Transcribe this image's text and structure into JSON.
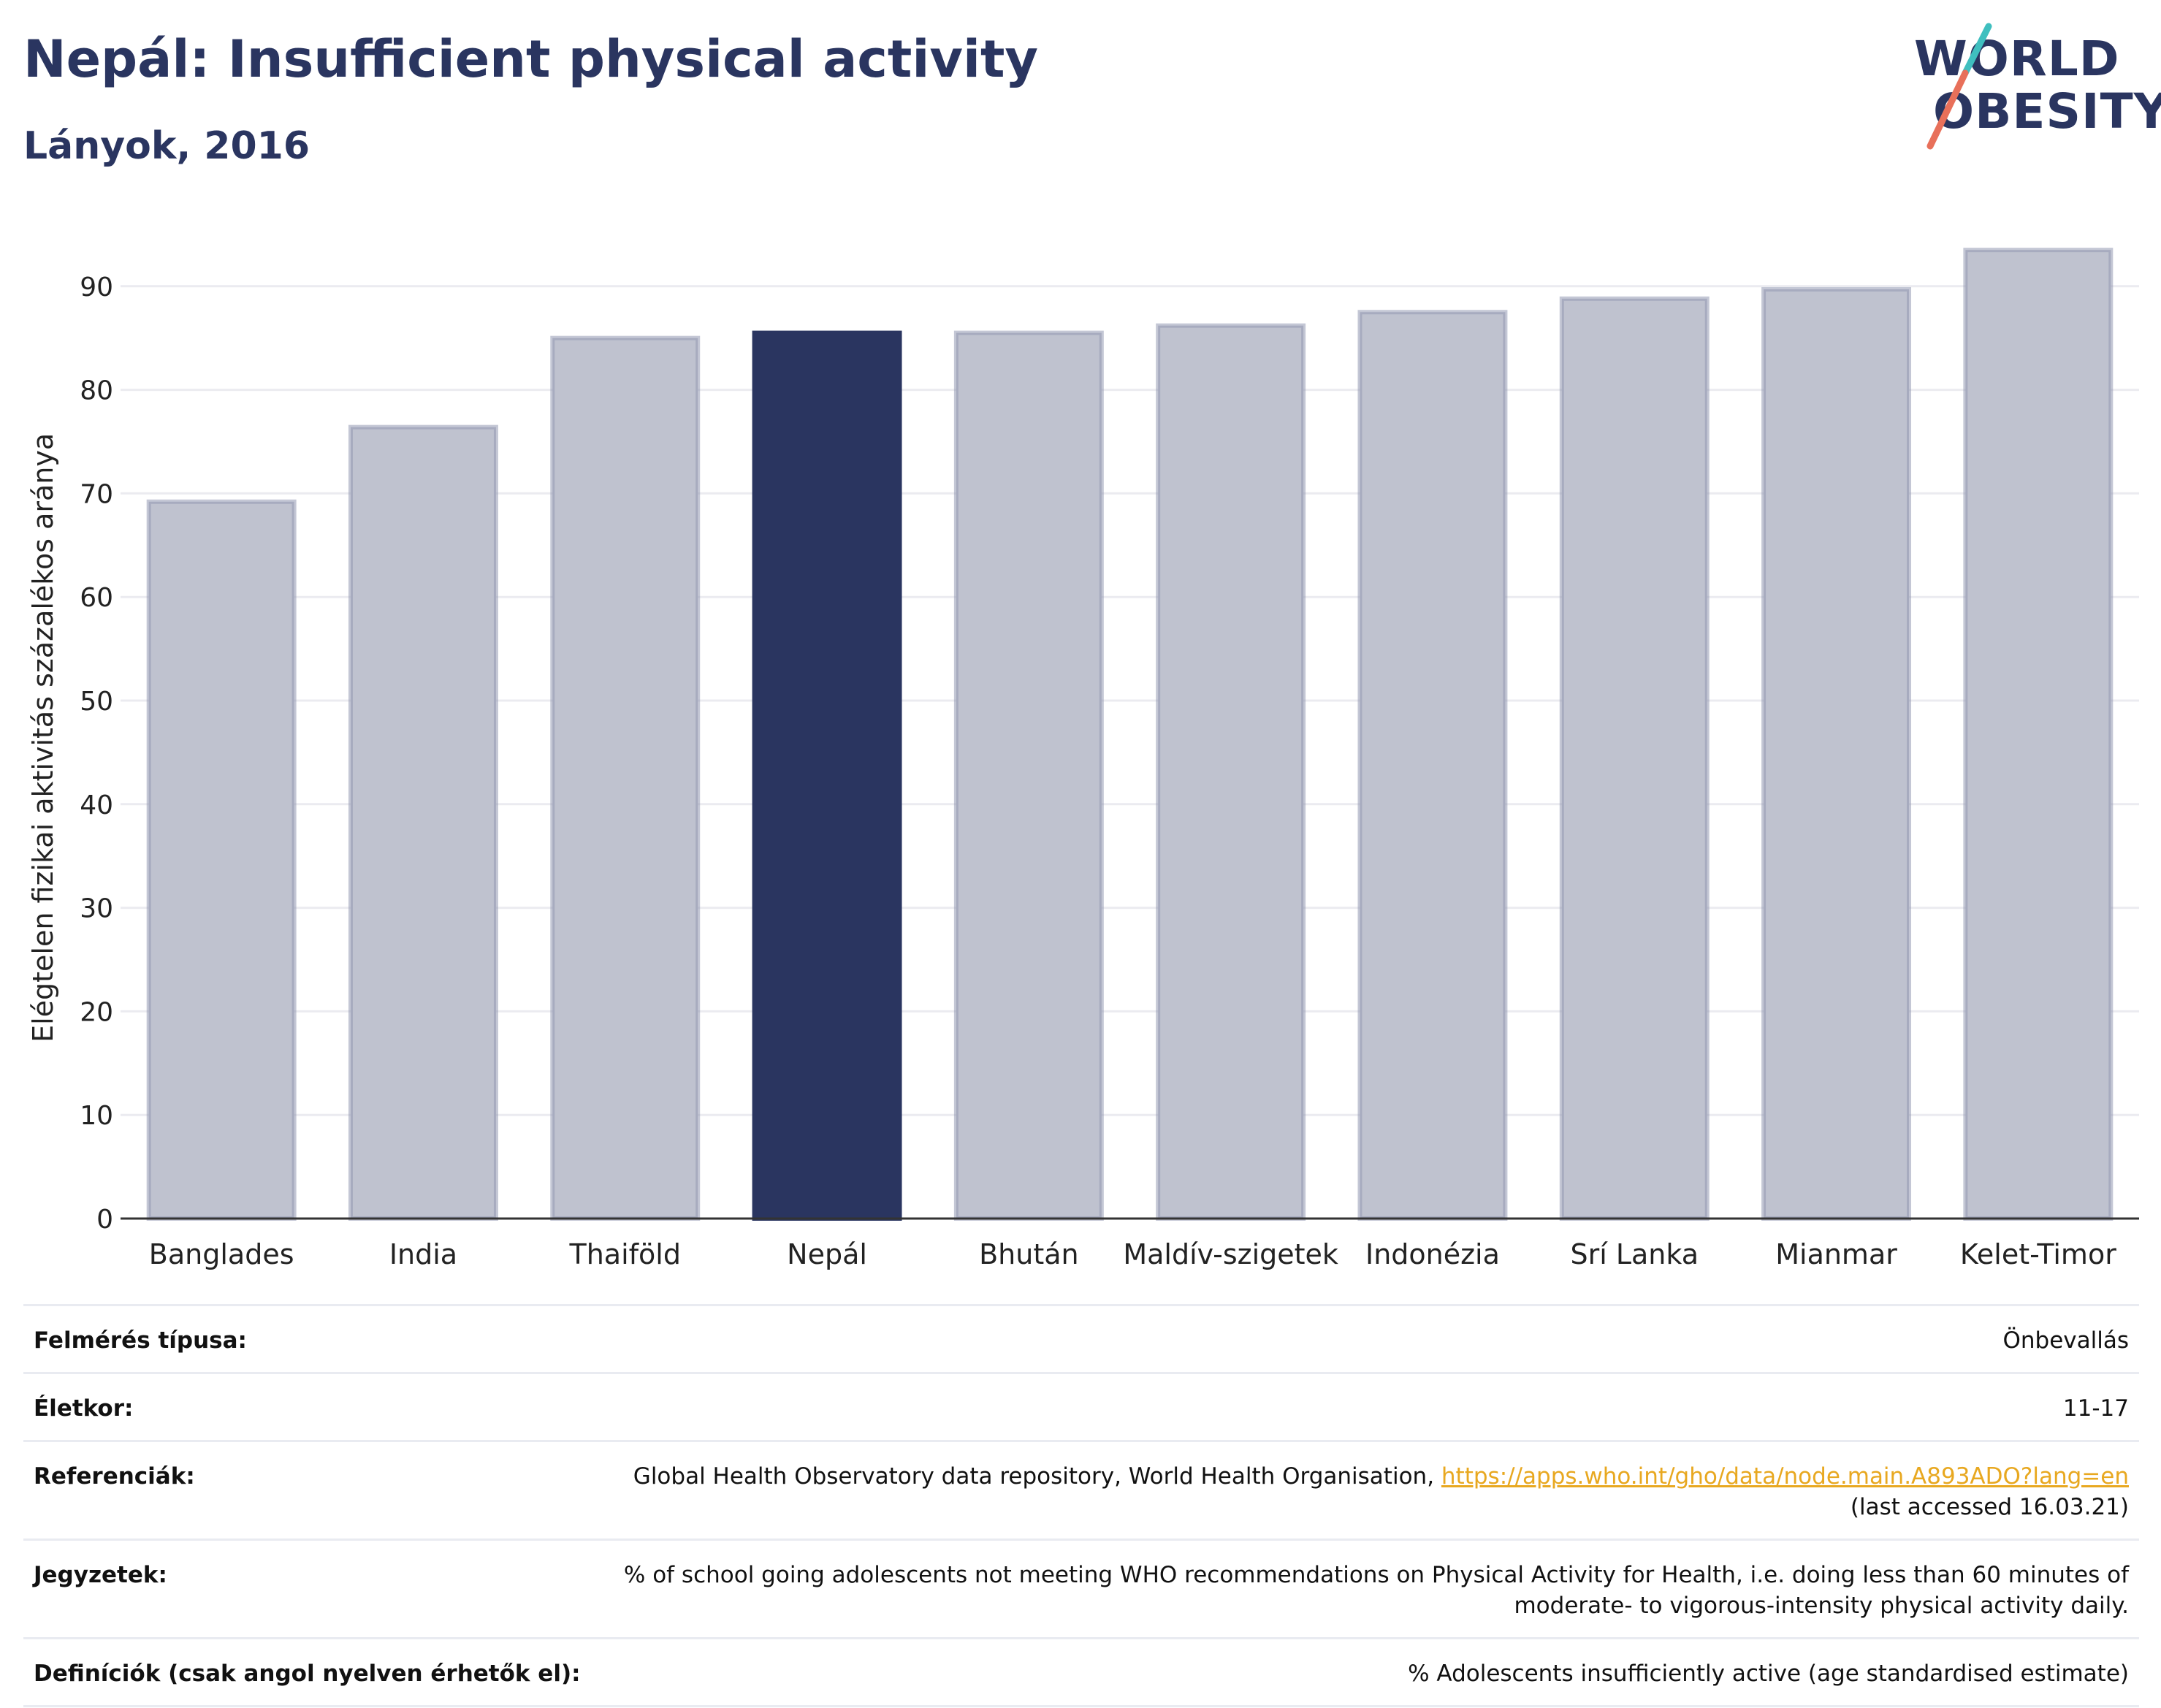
{
  "header": {
    "title": "Nepál: Insufficient physical activity",
    "subtitle": "Lányok, 2016"
  },
  "logo": {
    "line1": "WORLD",
    "line2": "OBESITY",
    "colors": {
      "text": "#2a3560",
      "slash_top": "#3fbfbf",
      "slash_bottom": "#e8705a"
    }
  },
  "chart_data": {
    "type": "bar",
    "categories": [
      "Banglades",
      "India",
      "Thaiföld",
      "Nepál",
      "Bhután",
      "Maldív-szigetek",
      "Indonézia",
      "Srí Lanka",
      "Mianmar",
      "Kelet-Timor"
    ],
    "values": [
      69.2,
      76.4,
      85.0,
      85.5,
      85.5,
      86.2,
      87.5,
      88.8,
      89.7,
      93.5
    ],
    "highlight": "Nepál",
    "ylabel": "Elégtelen fizikai aktivitás százalékos aránya",
    "xlabel": "",
    "ylim": [
      0,
      96
    ],
    "yticks": [
      0,
      10,
      20,
      30,
      40,
      50,
      60,
      70,
      80,
      90
    ],
    "grid": true,
    "colors": {
      "bar": "#bfc2cf",
      "bar_border": "#9499b3",
      "highlight": "#2a3560",
      "grid": "#ebebf0",
      "axis": "#2a3560"
    }
  },
  "info": [
    {
      "label": "Felmérés típusa:",
      "value": "Önbevallás"
    },
    {
      "label": "Életkor:",
      "value": "11-17"
    },
    {
      "label": "Referenciák:",
      "value": "Global Health Observatory data repository, World Health Organisation,",
      "link": "https://apps.who.int/gho/data/node.main.A893ADO?lang=en",
      "value2": "(last accessed 16.03.21)"
    },
    {
      "label": "Jegyzetek:",
      "value": "% of school going adolescents not meeting WHO recommendations on Physical Activity for Health, i.e. doing less than 60 minutes of moderate- to vigorous-intensity physical activity daily."
    },
    {
      "label": "Definíciók (csak angol nyelven érhetők el):",
      "value": "% Adolescents insufficiently active (age standardised estimate)"
    }
  ]
}
